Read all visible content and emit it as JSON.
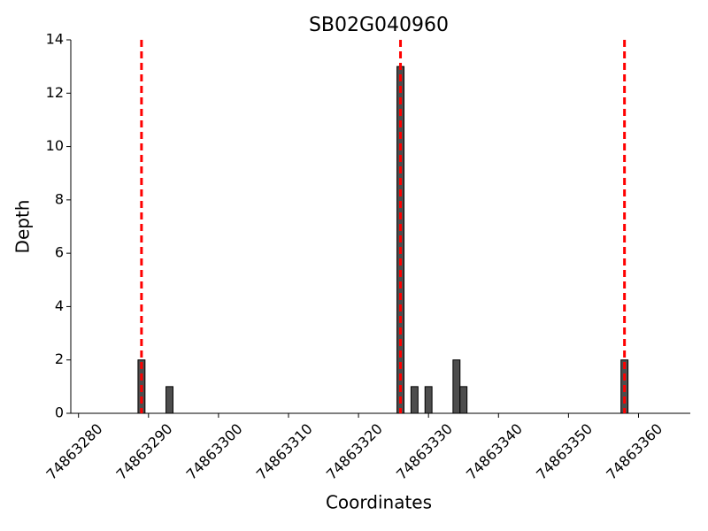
{
  "chart_data": {
    "type": "bar",
    "title": "SB02G040960",
    "xlabel": "Coordinates",
    "ylabel": "Depth",
    "x": [
      74863289,
      74863293,
      74863326,
      74863328,
      74863330,
      74863334,
      74863335,
      74863358
    ],
    "values": [
      2,
      1,
      13,
      1,
      1,
      2,
      1,
      2
    ],
    "color": "#4d4d4d",
    "vlines": [
      74863289,
      74863326,
      74863358
    ],
    "vline_color": "#ff0000",
    "xlim": [
      74863278.9,
      74863367.4
    ],
    "xticks": [
      74863280,
      74863290,
      74863300,
      74863310,
      74863320,
      74863330,
      74863340,
      74863350,
      74863360
    ],
    "ylim": [
      0,
      14
    ],
    "yticks": [
      0,
      2,
      4,
      6,
      8,
      10,
      12,
      14
    ]
  }
}
